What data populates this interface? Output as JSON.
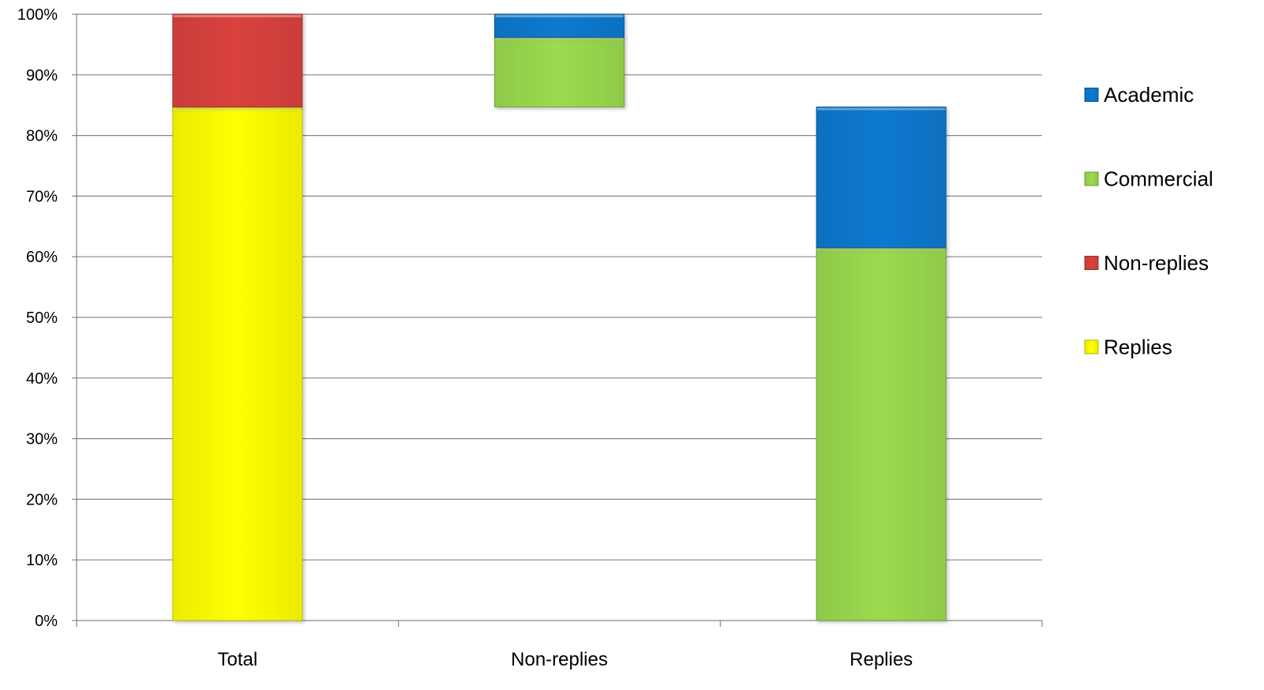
{
  "chart_data": {
    "type": "bar",
    "stacked": true,
    "categories": [
      "Total",
      "Non-replies",
      "Replies"
    ],
    "ylim": [
      0,
      100
    ],
    "yticks": [
      "0%",
      "10%",
      "20%",
      "30%",
      "40%",
      "50%",
      "60%",
      "70%",
      "80%",
      "90%",
      "100%"
    ],
    "grid": true,
    "legend_position": "right",
    "series": [
      {
        "name": "Replies",
        "color": "#ffff00",
        "segments": [
          {
            "bottom": 0,
            "top": 84.7
          },
          null,
          null
        ]
      },
      {
        "name": "Non-replies",
        "color": "#d9423e",
        "segments": [
          {
            "bottom": 84.7,
            "top": 100
          },
          null,
          null
        ]
      },
      {
        "name": "Commercial",
        "color": "#9bdb4f",
        "segments": [
          null,
          {
            "bottom": 84.7,
            "top": 96.2
          },
          {
            "bottom": 0,
            "top": 61.5
          }
        ]
      },
      {
        "name": "Academic",
        "color": "#0a7ad0",
        "segments": [
          null,
          {
            "bottom": 96.2,
            "top": 100
          },
          {
            "bottom": 61.5,
            "top": 84.7
          }
        ]
      }
    ],
    "legend_order": [
      "Academic",
      "Commercial",
      "Non-replies",
      "Replies"
    ]
  }
}
